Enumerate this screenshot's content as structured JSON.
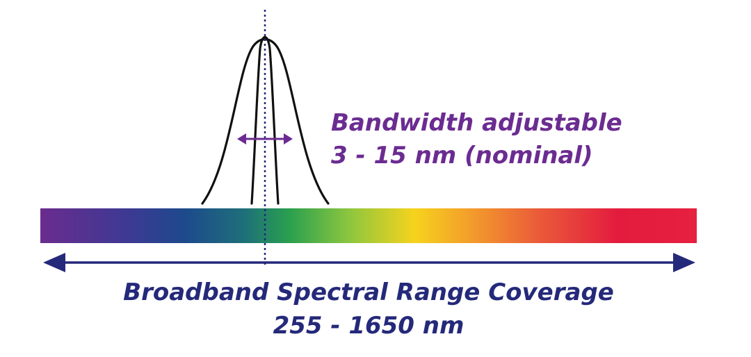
{
  "bandwidth": {
    "line1": "Bandwidth adjustable",
    "line2": "3 - 15 nm (nominal)",
    "color": "#6b2c91"
  },
  "range": {
    "line1": "Broadband Spectral Range Coverage",
    "line2": "255 - 1650 nm",
    "color": "#24297a"
  },
  "curve_color": "#111111",
  "spectrum_colors": [
    "#6a2c8e",
    "#3b3a93",
    "#1d4a8c",
    "#1e7f6e",
    "#2fa84a",
    "#8cc63f",
    "#f6d31d",
    "#f39a2c",
    "#ea5a3a",
    "#e31b3e",
    "#e6203f"
  ]
}
